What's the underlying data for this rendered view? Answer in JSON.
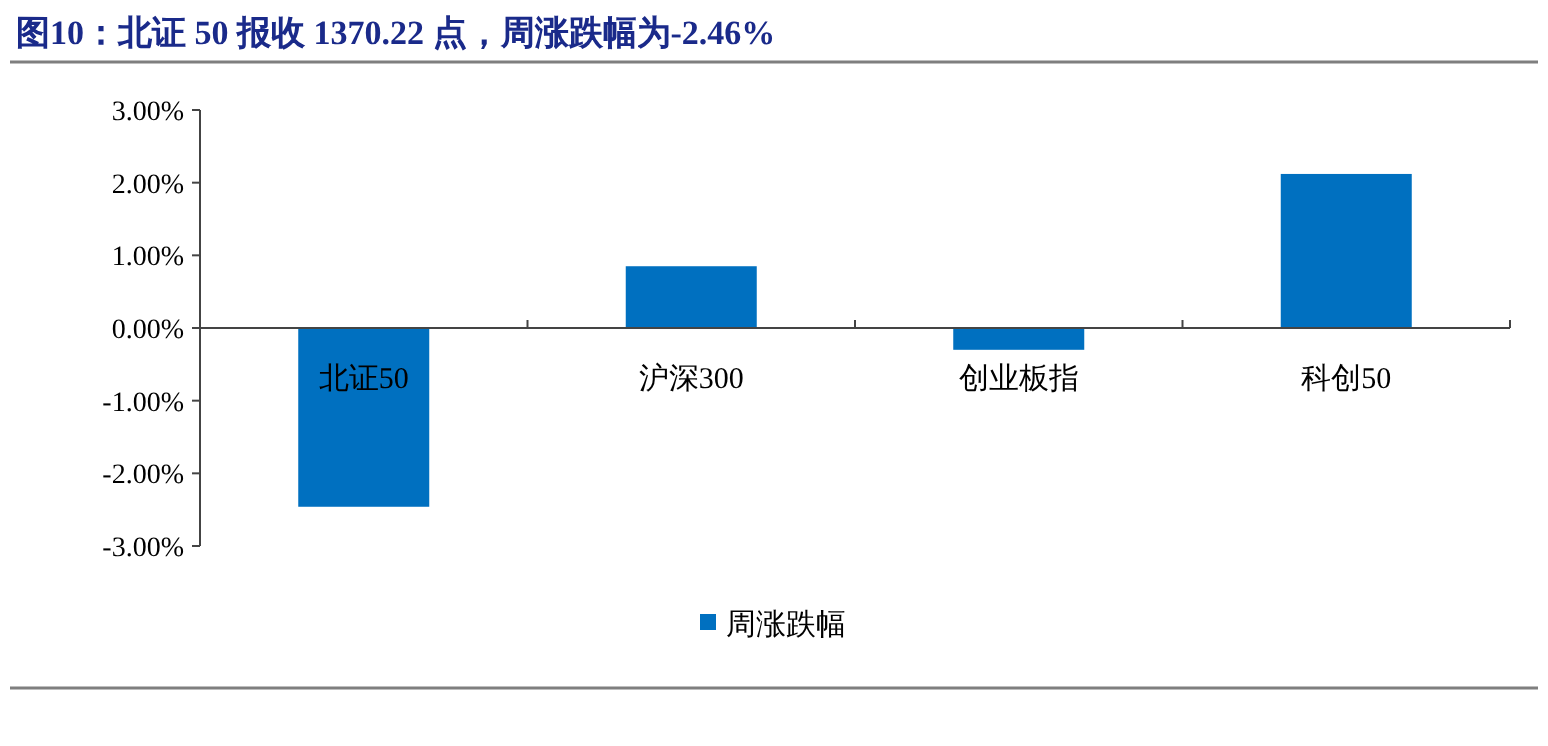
{
  "chart_data": {
    "type": "bar",
    "title": "图10：北证 50 报收 1370.22 点，周涨跌幅为-2.46%",
    "categories": [
      "北证50",
      "沪深300",
      "创业板指",
      "科创50"
    ],
    "series": [
      {
        "name": "周涨跌幅",
        "color": "#0070c0",
        "values": [
          -2.46,
          0.85,
          -0.3,
          2.12
        ]
      }
    ],
    "ylim": [
      -3,
      3
    ],
    "yticks": [
      {
        "value": -3,
        "label": "-3.00%"
      },
      {
        "value": -2,
        "label": "-2.00%"
      },
      {
        "value": -1,
        "label": "-1.00%"
      },
      {
        "value": 0,
        "label": "0.00%"
      },
      {
        "value": 1,
        "label": "1.00%"
      },
      {
        "value": 2,
        "label": "2.00%"
      },
      {
        "value": 3,
        "label": "3.00%"
      }
    ],
    "legend": "bottom"
  }
}
